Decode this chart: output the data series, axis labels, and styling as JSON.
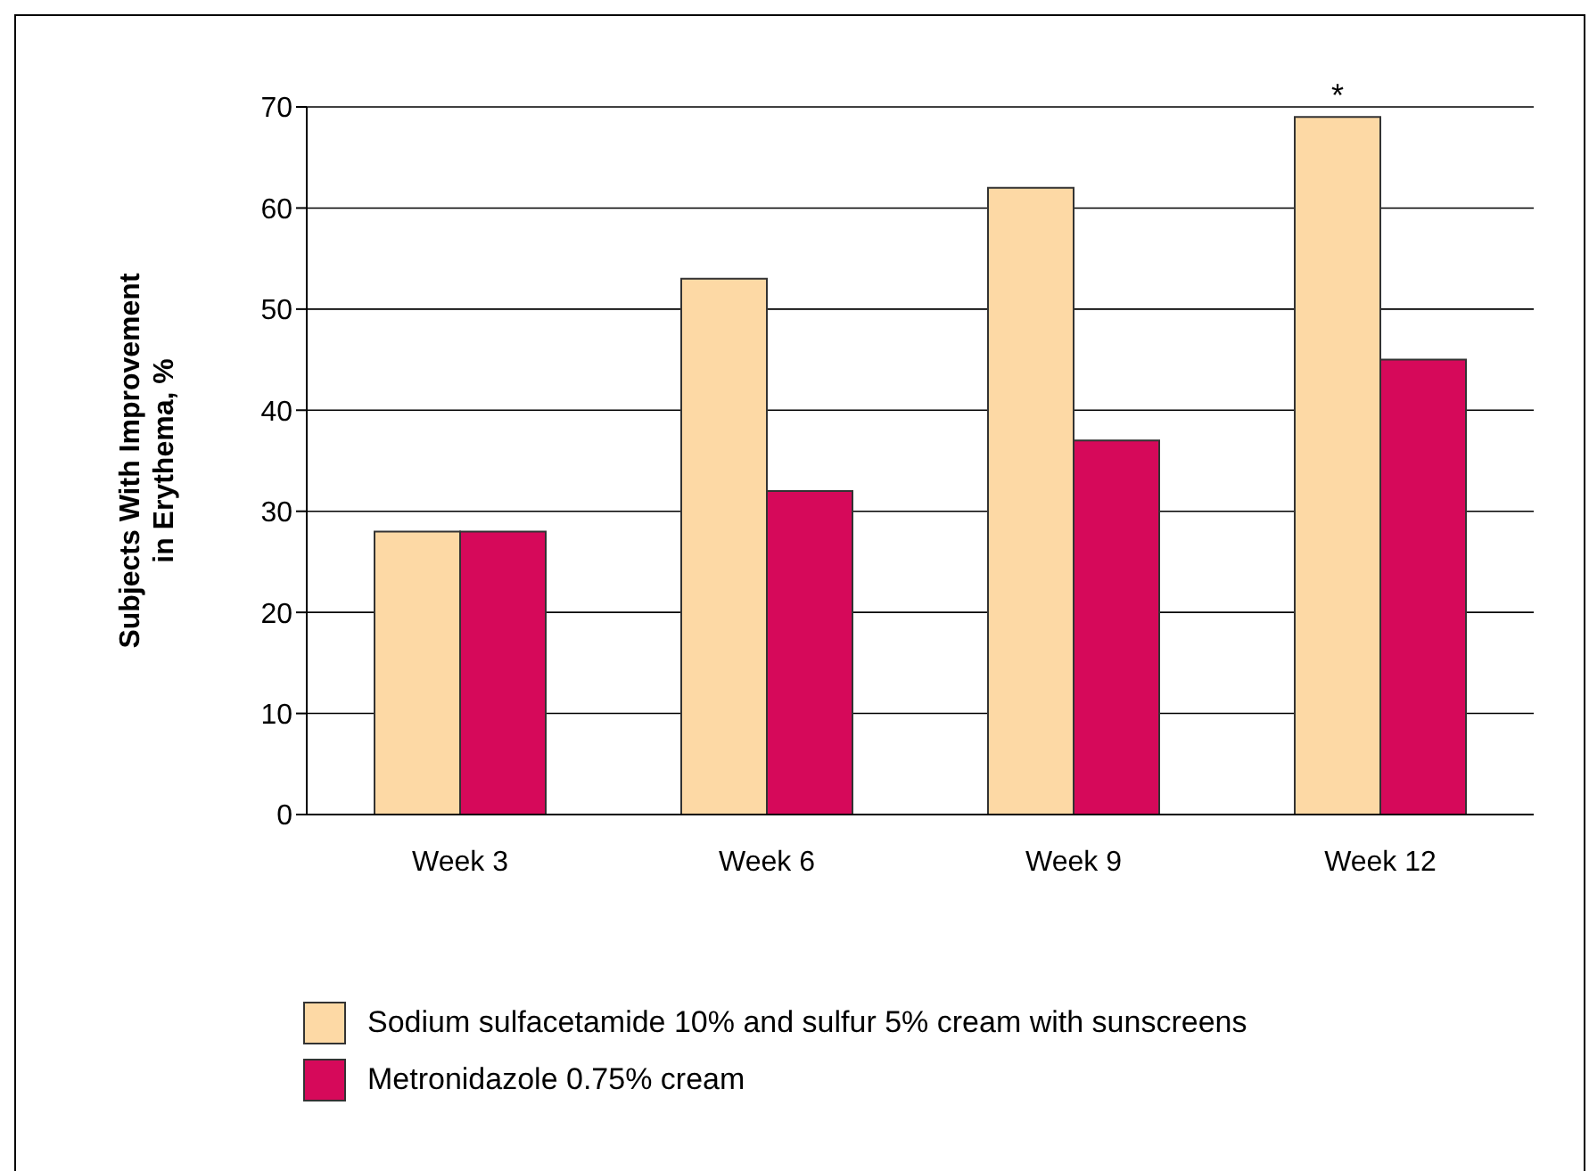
{
  "chart_data": {
    "type": "bar",
    "ylabel": "Subjects With Improvement in Erythema, %",
    "categories": [
      "Week 3",
      "Week 6",
      "Week 9",
      "Week 12"
    ],
    "series": [
      {
        "name": "Sodium sulfacetamide 10% and sulfur 5% cream with sunscreens",
        "color": "#fdd9a5",
        "values": [
          28,
          53,
          62,
          69
        ]
      },
      {
        "name": "Metronidazole 0.75% cream",
        "color": "#d6095a",
        "values": [
          28,
          32,
          37,
          45
        ]
      }
    ],
    "ylim": [
      0,
      70
    ],
    "yticks": [
      0,
      10,
      20,
      30,
      40,
      50,
      60,
      70
    ],
    "grid": "y",
    "legend": "bottom left",
    "annotations": [
      {
        "text": "*",
        "x": "Week 12",
        "y": 69
      }
    ]
  }
}
